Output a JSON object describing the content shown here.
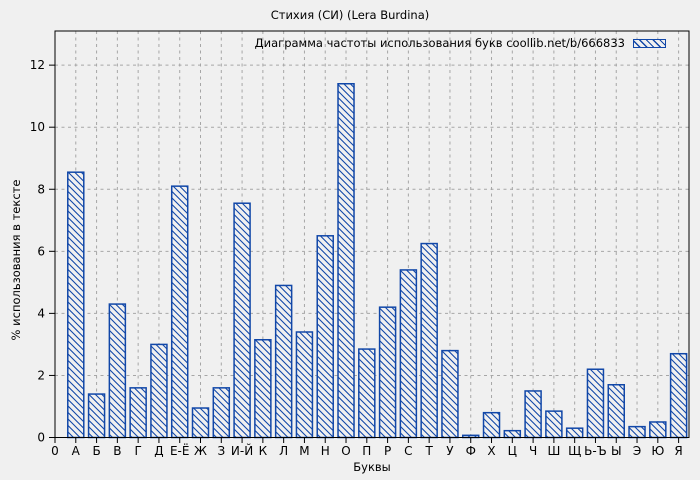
{
  "window": {
    "background_color": "#f0f0f0"
  },
  "header": {
    "title": "Стихия (СИ) (Lera Burdina)"
  },
  "legend": {
    "label": "Диаграмма частоты использования букв coollib.net/b/666833",
    "swatch_icon": "blue-hatched-bar-swatch"
  },
  "axes": {
    "x_title": "Буквы",
    "y_title": "% использования в тексте",
    "x_origin_tick_label": "0"
  },
  "colors": {
    "bar_blue": "#1147a8",
    "grid_gray": "#a6a6a6",
    "axis_black": "#000000",
    "background": "#f0f0f0"
  },
  "chart_data": {
    "type": "bar",
    "title": "Стихия (СИ) (Lera Burdina)",
    "legend_entry": "Диаграмма частоты использования букв coollib.net/b/666833",
    "xlabel": "Буквы",
    "ylabel": "% использования в тексте",
    "x_origin_label": "0",
    "categories": [
      "А",
      "Б",
      "В",
      "Г",
      "Д",
      "Е-Ё",
      "Ж",
      "З",
      "И-Й",
      "К",
      "Л",
      "М",
      "Н",
      "О",
      "П",
      "Р",
      "С",
      "Т",
      "У",
      "Ф",
      "Х",
      "Ц",
      "Ч",
      "Ш",
      "Щ",
      "Ь-Ъ",
      "Ы",
      "Э",
      "Ю",
      "Я"
    ],
    "values": [
      8.55,
      1.4,
      4.3,
      1.6,
      3.0,
      8.1,
      0.95,
      1.6,
      7.55,
      3.15,
      4.9,
      3.4,
      6.5,
      11.4,
      2.85,
      4.2,
      5.4,
      6.25,
      2.8,
      0.07,
      0.8,
      0.22,
      1.5,
      0.85,
      0.3,
      2.2,
      1.7,
      0.35,
      0.5,
      2.7
    ],
    "yticks": [
      0,
      2,
      4,
      6,
      8,
      10,
      12
    ],
    "ylim": [
      0,
      13.1
    ],
    "grid": true,
    "grid_style": "dashed",
    "legend_position": "top-right-inside",
    "bar_style": "diagonal-hatch-outline"
  }
}
